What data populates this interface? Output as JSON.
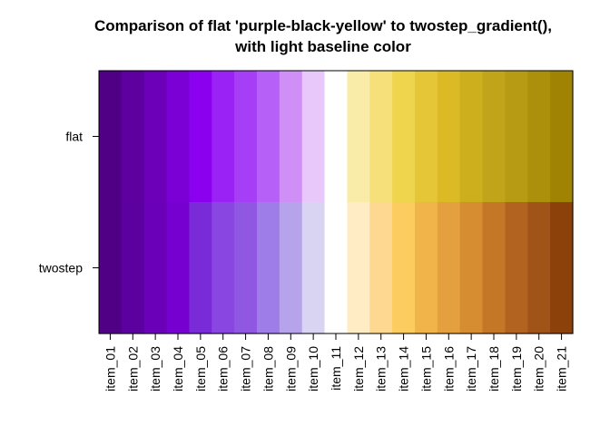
{
  "chart_data": {
    "type": "heatmap",
    "title_lines": [
      "Comparison of flat 'purple-black-yellow' to twostep_gradient(),",
      "with light baseline color"
    ],
    "rows": [
      "flat",
      "twostep"
    ],
    "columns": [
      "item_01",
      "item_02",
      "item_03",
      "item_04",
      "item_05",
      "item_06",
      "item_07",
      "item_08",
      "item_09",
      "item_10",
      "item_11",
      "item_12",
      "item_13",
      "item_14",
      "item_15",
      "item_16",
      "item_17",
      "item_18",
      "item_19",
      "item_20",
      "item_21"
    ],
    "cells": [
      [
        "#4f0085",
        "#5e00a0",
        "#6b00b8",
        "#7a00d6",
        "#8a00ef",
        "#9a22f5",
        "#a73ef7",
        "#b660f7",
        "#d08ef7",
        "#e8c8fa",
        "#ffffff",
        "#f8eca8",
        "#f5e07a",
        "#efd44e",
        "#e4c636",
        "#dbba26",
        "#cdaf1e",
        "#c2a41a",
        "#b89b14",
        "#ac900c",
        "#a18304"
      ],
      [
        "#4f0085",
        "#5c00a0",
        "#6a00b8",
        "#7500d0",
        "#7a2bd8",
        "#8a46e0",
        "#9058e2",
        "#9f7de8",
        "#b7a2ec",
        "#d8d4f2",
        "#ffffff",
        "#ffecc4",
        "#fed890",
        "#fdcc5e",
        "#f0b44a",
        "#e4a03e",
        "#d68c30",
        "#c57728",
        "#b26320",
        "#a05418",
        "#8c400a"
      ]
    ],
    "grid": false,
    "legend": "none"
  }
}
